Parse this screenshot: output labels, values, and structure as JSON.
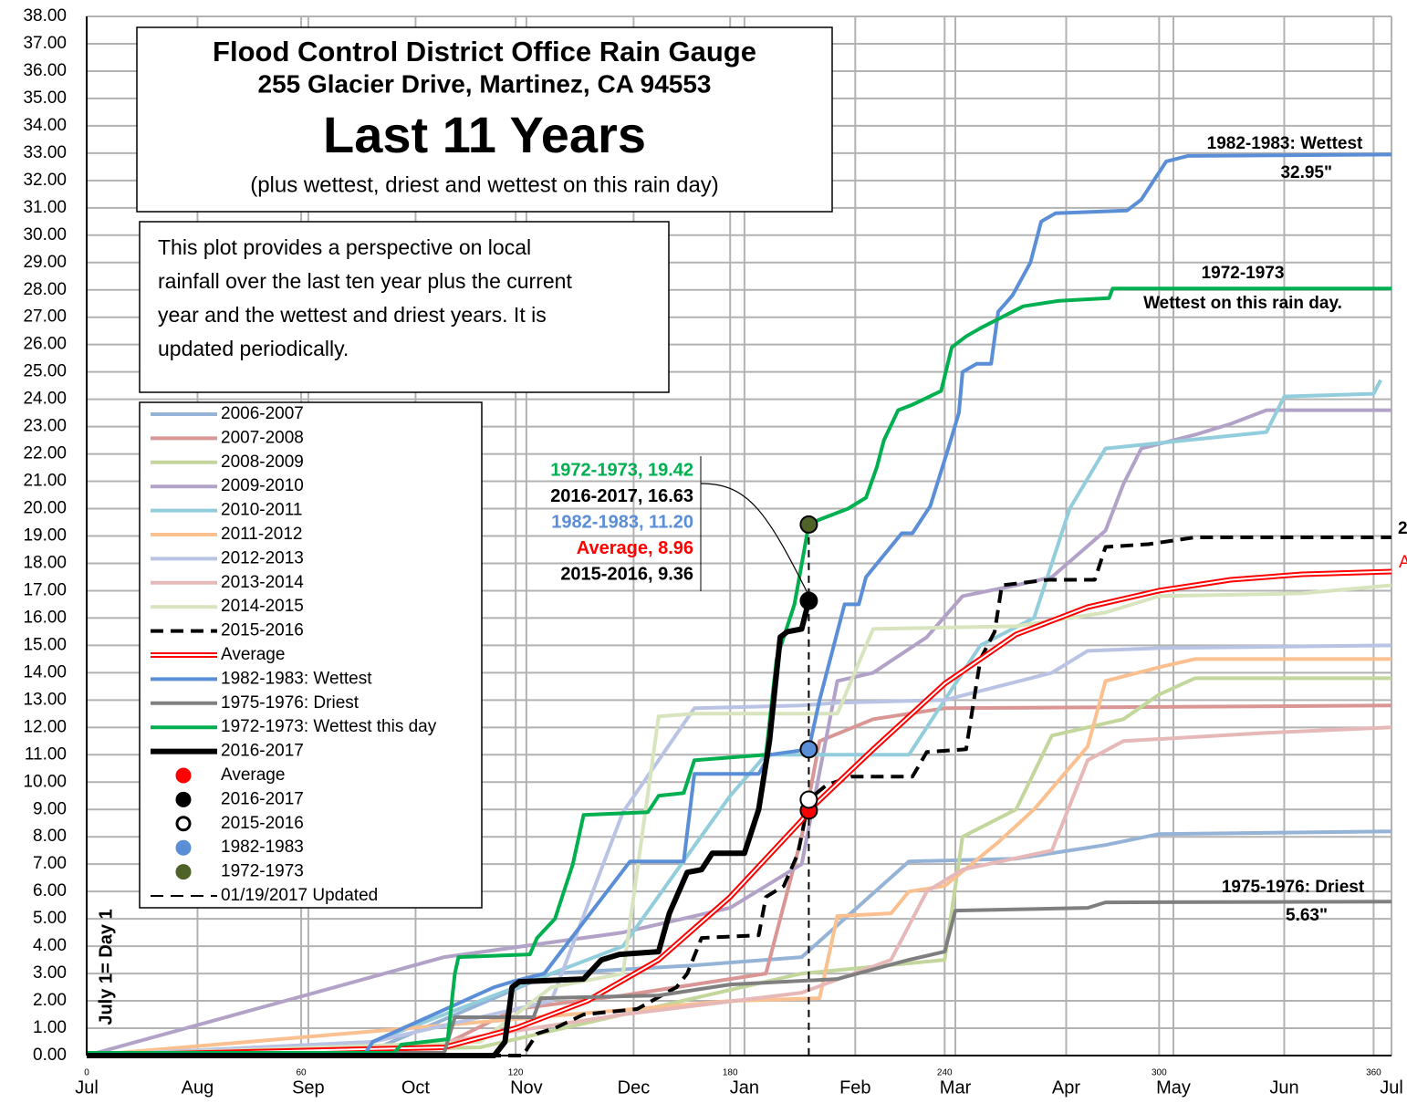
{
  "chart_data": {
    "type": "line",
    "title_lines": [
      "Flood  Control District Office Rain Gauge",
      "255 Glacier Drive, Martinez, CA 94553",
      "Last 11 Years",
      "(plus wettest, driest and wettest on this rain day)"
    ],
    "description_lines": [
      "This plot provides a perspective on local",
      "rainfall over the last ten year plus the current",
      "year and the wettest and driest years. It is",
      "updated periodically."
    ],
    "y_axis_label": "July 1= Day 1",
    "xlim": [
      0,
      365
    ],
    "ylim": [
      0,
      38
    ],
    "xticks": [
      0,
      60,
      120,
      180,
      240,
      300,
      360
    ],
    "month_ticks": [
      {
        "value": 0,
        "label": "Jul"
      },
      {
        "value": 31,
        "label": "Aug"
      },
      {
        "value": 62,
        "label": "Sep"
      },
      {
        "value": 92,
        "label": "Oct"
      },
      {
        "value": 123,
        "label": "Nov"
      },
      {
        "value": 153,
        "label": "Dec"
      },
      {
        "value": 184,
        "label": "Jan"
      },
      {
        "value": 215,
        "label": "Feb"
      },
      {
        "value": 243,
        "label": "Mar"
      },
      {
        "value": 274,
        "label": "Apr"
      },
      {
        "value": 304,
        "label": "May"
      },
      {
        "value": 335,
        "label": "Jun"
      },
      {
        "value": 365,
        "label": "Jul"
      }
    ],
    "yticks": [
      {
        "value": 0,
        "label": "0.00"
      },
      {
        "value": 1,
        "label": "1.00"
      },
      {
        "value": 2,
        "label": "2.00"
      },
      {
        "value": 3,
        "label": "3.00"
      },
      {
        "value": 4,
        "label": "4.00"
      },
      {
        "value": 5,
        "label": "5.00"
      },
      {
        "value": 6,
        "label": "6.00"
      },
      {
        "value": 7,
        "label": "7.00"
      },
      {
        "value": 8,
        "label": "8.00"
      },
      {
        "value": 9,
        "label": "9.00"
      },
      {
        "value": 10,
        "label": "10.00"
      },
      {
        "value": 11,
        "label": "11.00"
      },
      {
        "value": 12,
        "label": "12.00"
      },
      {
        "value": 13,
        "label": "13.00"
      },
      {
        "value": 14,
        "label": "14.00"
      },
      {
        "value": 15,
        "label": "15.00"
      },
      {
        "value": 16,
        "label": "16.00"
      },
      {
        "value": 17,
        "label": "17.00"
      },
      {
        "value": 18,
        "label": "18.00"
      },
      {
        "value": 19,
        "label": "19.00"
      },
      {
        "value": 20,
        "label": "20.00"
      },
      {
        "value": 21,
        "label": "21.00"
      },
      {
        "value": 22,
        "label": "22.00"
      },
      {
        "value": 23,
        "label": "23.00"
      },
      {
        "value": 24,
        "label": "24.00"
      },
      {
        "value": 25,
        "label": "25.00"
      },
      {
        "value": 26,
        "label": "26.00"
      },
      {
        "value": 27,
        "label": "27.00"
      },
      {
        "value": 28,
        "label": "28.00"
      },
      {
        "value": 29,
        "label": "29.00"
      },
      {
        "value": 30,
        "label": "30.00"
      },
      {
        "value": 31,
        "label": "31.00"
      },
      {
        "value": 32,
        "label": "32.00"
      },
      {
        "value": 33,
        "label": "33.00"
      },
      {
        "value": 34,
        "label": "34.00"
      },
      {
        "value": 35,
        "label": "35.00"
      },
      {
        "value": 36,
        "label": "36.00"
      },
      {
        "value": 37,
        "label": "37.00"
      },
      {
        "value": 38,
        "label": "38.00"
      }
    ],
    "grid": true,
    "series": [
      {
        "name": "2006-2007",
        "color": "#95b3d7",
        "style": "solid",
        "x": [
          0,
          80,
          130,
          170,
          200,
          230,
          260,
          285,
          300,
          365
        ],
        "values": [
          0,
          0.2,
          3,
          3.3,
          3.6,
          7.1,
          7.2,
          7.7,
          8.1,
          8.2
        ]
      },
      {
        "name": "2007-2008",
        "color": "#d99694",
        "style": "solid",
        "x": [
          0,
          100,
          120,
          150,
          190,
          200,
          205,
          220,
          240,
          365
        ],
        "values": [
          0,
          0.4,
          1.7,
          2.2,
          3.0,
          8.0,
          11.5,
          12.3,
          12.7,
          12.8
        ]
      },
      {
        "name": "2008-2009",
        "color": "#c3d69b",
        "style": "solid",
        "x": [
          0,
          110,
          150,
          200,
          240,
          245,
          260,
          270,
          290,
          300,
          310,
          365
        ],
        "values": [
          0,
          0.3,
          1.5,
          3.0,
          3.5,
          8.0,
          9.0,
          11.7,
          12.3,
          13.2,
          13.8,
          13.8
        ]
      },
      {
        "name": "2009-2010",
        "color": "#b3a2c7",
        "style": "solid",
        "x": [
          0,
          100,
          150,
          180,
          200,
          210,
          220,
          235,
          245,
          260,
          270,
          285,
          290,
          295,
          310,
          320,
          330,
          365
        ],
        "values": [
          0,
          3.6,
          4.5,
          5.4,
          7.0,
          13.7,
          14.0,
          15.3,
          16.8,
          17.2,
          17.5,
          19.2,
          20.9,
          22.2,
          22.7,
          23.1,
          23.6,
          23.6
        ]
      },
      {
        "name": "2010-2011",
        "color": "#92cddc",
        "style": "solid",
        "x": [
          0,
          80,
          120,
          150,
          180,
          190,
          230,
          250,
          265,
          275,
          285,
          300,
          330,
          335,
          360,
          362
        ],
        "values": [
          0,
          0.5,
          2.5,
          4,
          9.5,
          11,
          11,
          15,
          16,
          20,
          22.2,
          22.4,
          22.8,
          24.1,
          24.2,
          24.7
        ]
      },
      {
        "name": "2011-2012",
        "color": "#fac090",
        "style": "solid",
        "x": [
          0,
          180,
          205,
          210,
          225,
          230,
          240,
          255,
          265,
          280,
          285,
          300,
          310,
          365
        ],
        "values": [
          0,
          2.0,
          2.1,
          5.1,
          5.2,
          6.0,
          6.2,
          7.8,
          9.0,
          11.3,
          13.7,
          14.2,
          14.5,
          14.5
        ]
      },
      {
        "name": "2012-2013",
        "color": "#b9c4e4",
        "style": "solid",
        "x": [
          0,
          80,
          130,
          150,
          170,
          200,
          210,
          240,
          270,
          280,
          300,
          365
        ],
        "values": [
          0,
          0.5,
          2.0,
          8.9,
          12.7,
          12.8,
          12.9,
          13.0,
          14,
          14.8,
          14.9,
          15.0
        ]
      },
      {
        "name": "2013-2014",
        "color": "#e6b9b8",
        "style": "solid",
        "x": [
          0,
          90,
          150,
          200,
          225,
          235,
          245,
          270,
          280,
          290,
          330,
          365
        ],
        "values": [
          0,
          0.3,
          1.5,
          2.3,
          3.5,
          6.0,
          6.8,
          7.5,
          10.8,
          11.5,
          11.8,
          12.0
        ]
      },
      {
        "name": "2014-2015",
        "color": "#d7e4bd",
        "style": "solid",
        "x": [
          0,
          110,
          130,
          150,
          160,
          170,
          210,
          220,
          260,
          285,
          300,
          340,
          365
        ],
        "values": [
          0,
          0.5,
          2.5,
          3.0,
          12.4,
          12.5,
          12.5,
          15.6,
          15.7,
          16.2,
          16.8,
          16.9,
          17.2
        ]
      },
      {
        "name": "2015-2016",
        "color": "#000000",
        "style": "dashed",
        "x": [
          0,
          122,
          126,
          131,
          139,
          154,
          165,
          168,
          172,
          188,
          190,
          195,
          199,
          202,
          207,
          214,
          231,
          235,
          246,
          250,
          254,
          256,
          269,
          282,
          285,
          297,
          310,
          365
        ],
        "values": [
          0,
          0,
          0.8,
          1.0,
          1.5,
          1.7,
          2.5,
          3.0,
          4.3,
          4.4,
          5.8,
          6.2,
          7.4,
          9.36,
          9.9,
          10.2,
          10.2,
          11.1,
          11.2,
          14.5,
          15.5,
          17.2,
          17.4,
          17.4,
          18.6,
          18.7,
          18.95,
          18.95
        ]
      },
      {
        "name": "Average",
        "color": "#ff0000",
        "style": "double",
        "x": [
          0,
          100,
          120,
          140,
          160,
          180,
          200,
          202,
          220,
          240,
          260,
          280,
          300,
          320,
          340,
          365
        ],
        "values": [
          0,
          0.3,
          1.0,
          2.0,
          3.5,
          5.8,
          8.6,
          8.96,
          11.2,
          13.6,
          15.4,
          16.4,
          17.0,
          17.4,
          17.6,
          17.7
        ]
      },
      {
        "name": "1982-1983: Wettest",
        "color": "#5a8ed6",
        "style": "solid",
        "x": [
          0,
          78,
          80,
          114,
          119,
          128,
          152,
          167,
          170,
          188,
          191,
          202,
          205,
          212,
          216,
          218,
          223,
          228,
          231,
          236,
          241,
          244,
          245,
          249,
          253,
          255,
          259,
          264,
          267,
          271,
          291,
          295,
          299,
          302,
          308,
          365
        ],
        "values": [
          0.1,
          0.1,
          0.5,
          2.5,
          2.7,
          3.0,
          7.1,
          7.1,
          10.3,
          10.3,
          11.0,
          11.2,
          13.0,
          16.5,
          16.5,
          17.5,
          18.3,
          19.1,
          19.1,
          20.1,
          22.2,
          23.5,
          25,
          25.3,
          25.3,
          27.2,
          27.8,
          29,
          30.5,
          30.8,
          30.9,
          31.3,
          32.1,
          32.7,
          32.9,
          32.95
        ]
      },
      {
        "name": "1975-1976: Driest",
        "color": "#7f7f7f",
        "style": "solid",
        "x": [
          0,
          100,
          103,
          125,
          127,
          160,
          180,
          210,
          230,
          240,
          243,
          280,
          285,
          365
        ],
        "values": [
          0.1,
          0.1,
          1.4,
          1.4,
          2.1,
          2.2,
          2.6,
          2.8,
          3.5,
          3.8,
          5.3,
          5.4,
          5.6,
          5.63
        ]
      },
      {
        "name": "1972-1973: Wettest this day",
        "color": "#00b050",
        "style": "solid",
        "x": [
          0,
          86,
          88,
          101,
          103,
          104,
          124,
          126,
          131,
          136,
          139,
          157,
          160,
          167,
          170,
          190,
          193,
          198,
          202,
          205,
          213,
          218,
          221,
          223,
          227,
          231,
          239,
          242,
          246,
          250,
          262,
          272,
          286,
          287,
          365
        ],
        "values": [
          0.1,
          0.1,
          0.4,
          0.6,
          3.0,
          3.6,
          3.7,
          4.3,
          5.0,
          7.0,
          8.8,
          8.9,
          9.5,
          9.6,
          10.8,
          11.0,
          14.5,
          16.5,
          19.42,
          19.6,
          20.0,
          20.4,
          21.5,
          22.5,
          23.6,
          23.8,
          24.3,
          25.9,
          26.3,
          26.6,
          27.4,
          27.6,
          27.7,
          28.05,
          28.05
        ]
      },
      {
        "name": "2016-2017",
        "color": "#000000",
        "style": "bold",
        "x": [
          0,
          114,
          117,
          119,
          121,
          139,
          144,
          149,
          160,
          163,
          168,
          172,
          175,
          184,
          188,
          191,
          194,
          196,
          200,
          202
        ],
        "values": [
          0,
          0,
          0.5,
          2.5,
          2.7,
          2.8,
          3.5,
          3.7,
          3.8,
          5.2,
          6.7,
          6.8,
          7.4,
          7.4,
          9,
          11.5,
          15.3,
          15.5,
          15.6,
          16.63
        ]
      }
    ],
    "markers": {
      "x": 202,
      "points": [
        {
          "name": "Average",
          "color": "#ff0000",
          "value": 8.96
        },
        {
          "name": "2016-2017",
          "color": "#000000",
          "value": 16.63
        },
        {
          "name": "2015-2016",
          "color": "#ffffff",
          "value": 9.36
        },
        {
          "name": "1982-1983",
          "color": "#5a8ed6",
          "value": 11.2
        },
        {
          "name": "1972-1973",
          "color": "#4f6228",
          "value": 19.42
        }
      ]
    },
    "updated": {
      "label": "01/19/2017 Updated"
    },
    "callouts": [
      {
        "label": "1972-1973, 19.42",
        "color": "#00b050"
      },
      {
        "label": "2016-2017, 16.63",
        "color": "#000000"
      },
      {
        "label": "1982-1983, 11.20",
        "color": "#5a8ed6"
      },
      {
        "label": "Average, 8.96",
        "color": "#ff0000"
      },
      {
        "label": "2015-2016, 9.36",
        "color": "#000000"
      }
    ],
    "annotations": [
      {
        "text": "1982-1983: Wettest",
        "color": "#000000"
      },
      {
        "text": "32.95\"",
        "color": "#000000"
      },
      {
        "text": "1972-1973",
        "color": "#000000"
      },
      {
        "text": "Wettest on this rain day.",
        "color": "#000000"
      },
      {
        "text": "1975-1976: Driest",
        "color": "#000000"
      },
      {
        "text": "5.63\"",
        "color": "#000000"
      },
      {
        "text": "2",
        "color": "#000000"
      },
      {
        "text": "A",
        "color": "#ff0000"
      }
    ]
  }
}
